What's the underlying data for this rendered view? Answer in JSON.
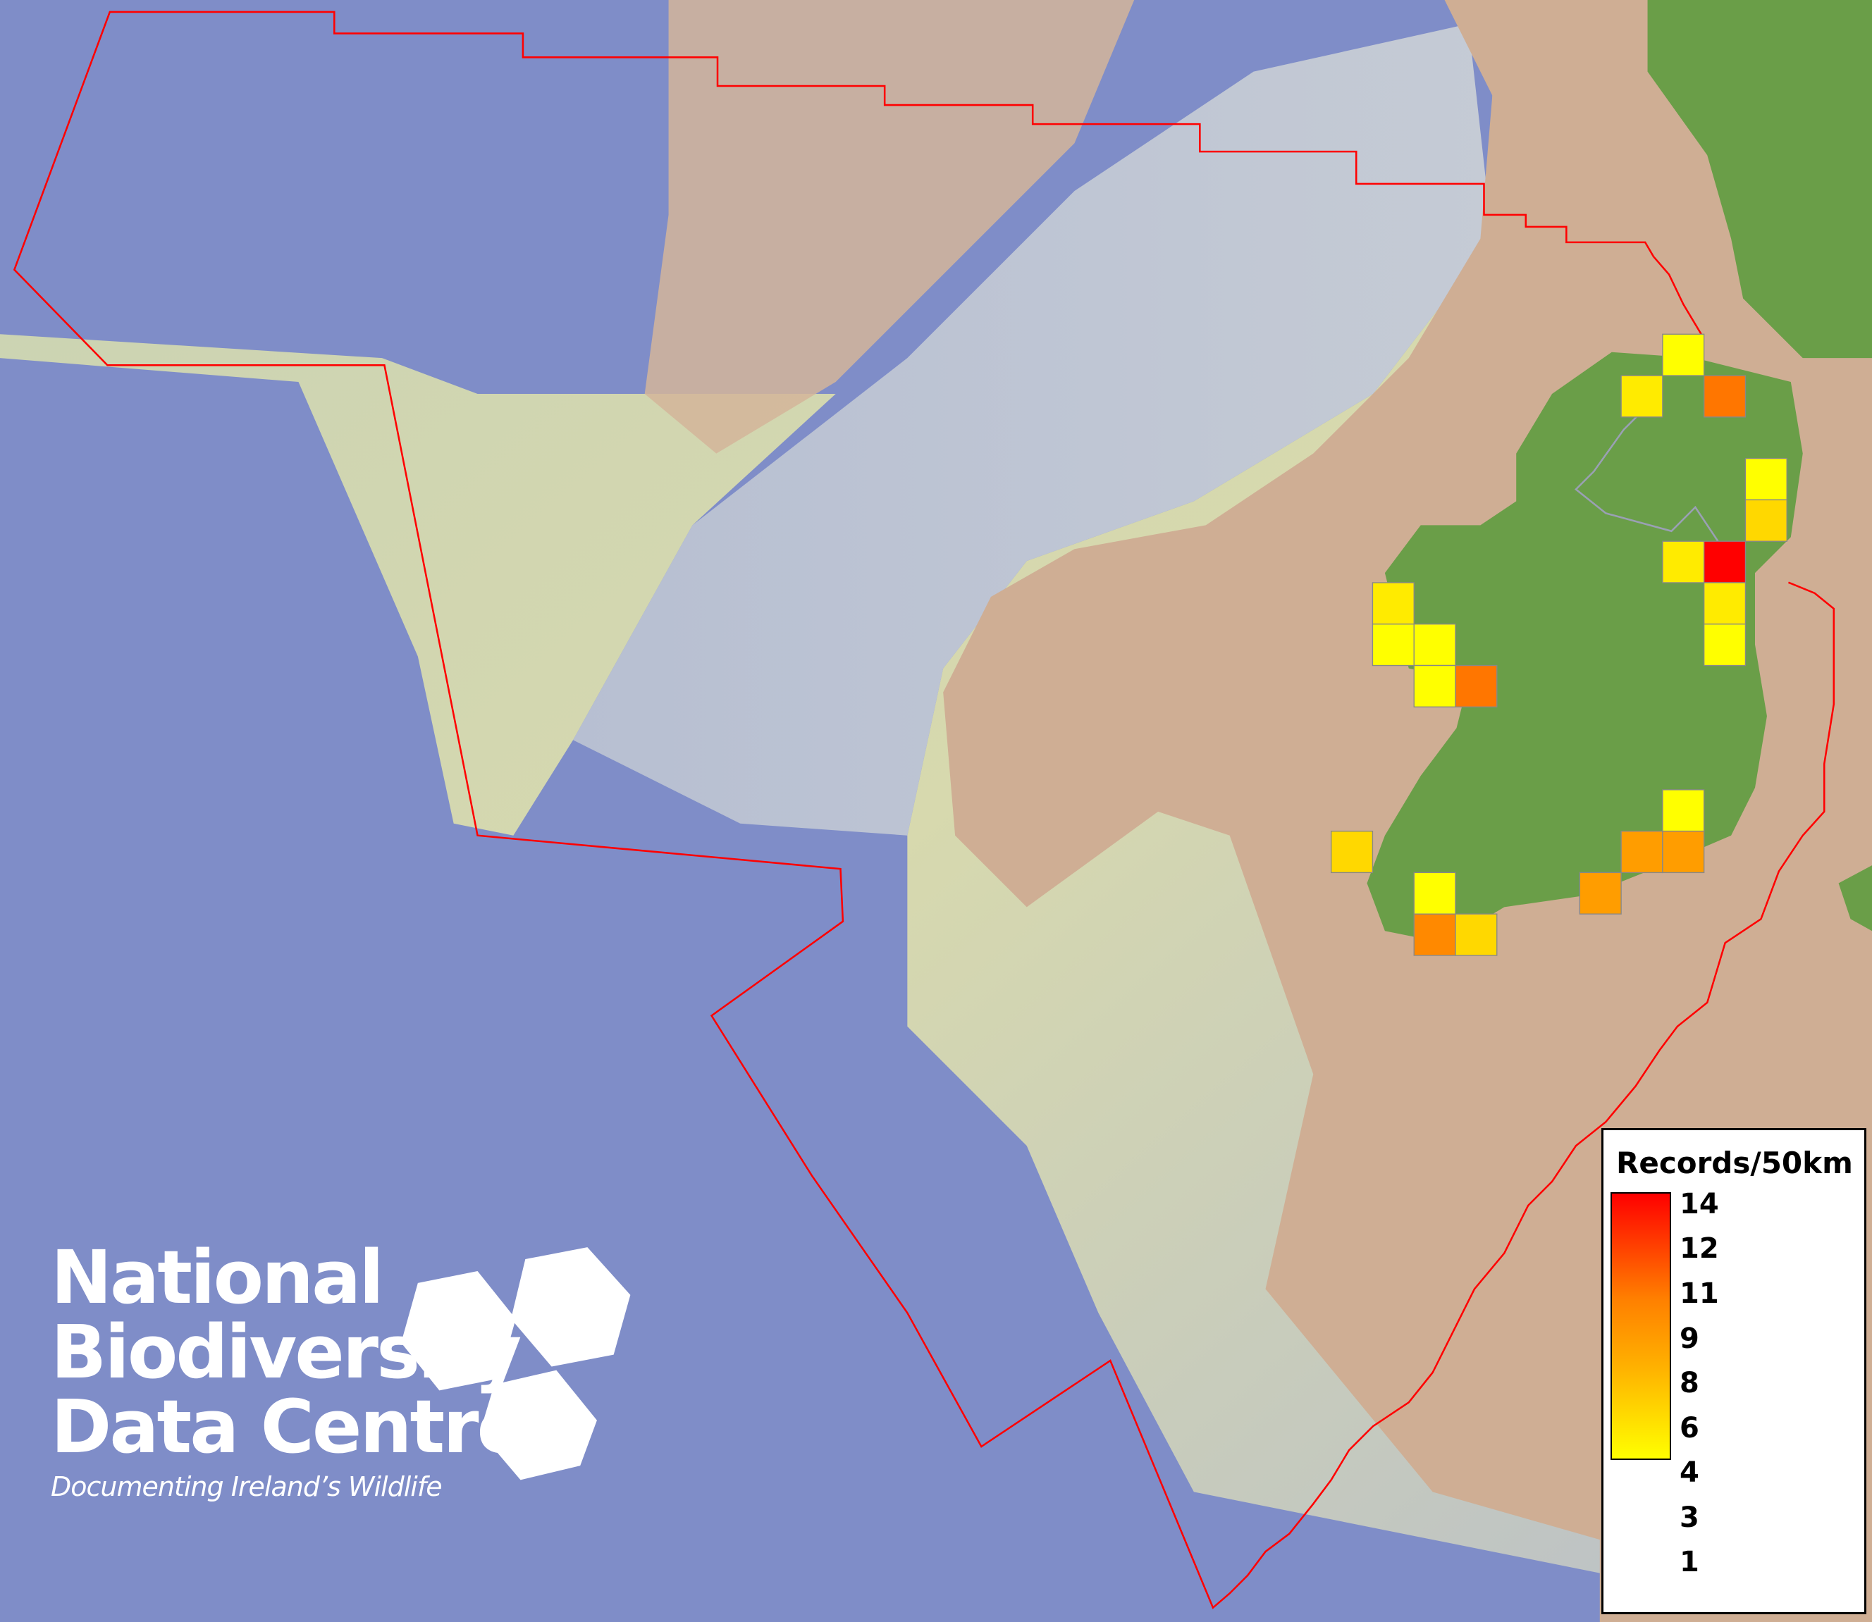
{
  "legend": {
    "title": "Records/50km",
    "labels": [
      "14",
      "12",
      "11",
      "9",
      "8",
      "6",
      "4",
      "3",
      "1"
    ],
    "min": 1,
    "max": 14,
    "color_low": "#ffff00",
    "color_high": "#ff0000"
  },
  "logo": {
    "line1": "National",
    "line2": "Biodiversity",
    "line3": "Data Centre",
    "tagline": "Documenting Ireland’s Wildlife"
  },
  "boundary_color": "#ff0000",
  "grid_cells": [
    {
      "col": 8,
      "row": 0,
      "value": 1
    },
    {
      "col": 7,
      "row": 1,
      "value": 2
    },
    {
      "col": 9,
      "row": 1,
      "value": 8
    },
    {
      "col": 10,
      "row": 3,
      "value": 1
    },
    {
      "col": 10,
      "row": 4,
      "value": 3
    },
    {
      "col": 8,
      "row": 5,
      "value": 2
    },
    {
      "col": 9,
      "row": 5,
      "value": 14
    },
    {
      "col": 9,
      "row": 6,
      "value": 2
    },
    {
      "col": 9,
      "row": 7,
      "value": 1
    },
    {
      "col": 1,
      "row": 6,
      "value": 2
    },
    {
      "col": 1,
      "row": 7,
      "value": 1
    },
    {
      "col": 2,
      "row": 7,
      "value": 1
    },
    {
      "col": 2,
      "row": 8,
      "value": 1
    },
    {
      "col": 3,
      "row": 8,
      "value": 8
    },
    {
      "col": 8,
      "row": 11,
      "value": 1
    },
    {
      "col": 7,
      "row": 12,
      "value": 6
    },
    {
      "col": 8,
      "row": 12,
      "value": 6
    },
    {
      "col": 0,
      "row": 12,
      "value": 3
    },
    {
      "col": 6,
      "row": 13,
      "value": 6
    },
    {
      "col": 2,
      "row": 13,
      "value": 1
    },
    {
      "col": 2,
      "row": 14,
      "value": 7
    },
    {
      "col": 3,
      "row": 14,
      "value": 3
    }
  ]
}
